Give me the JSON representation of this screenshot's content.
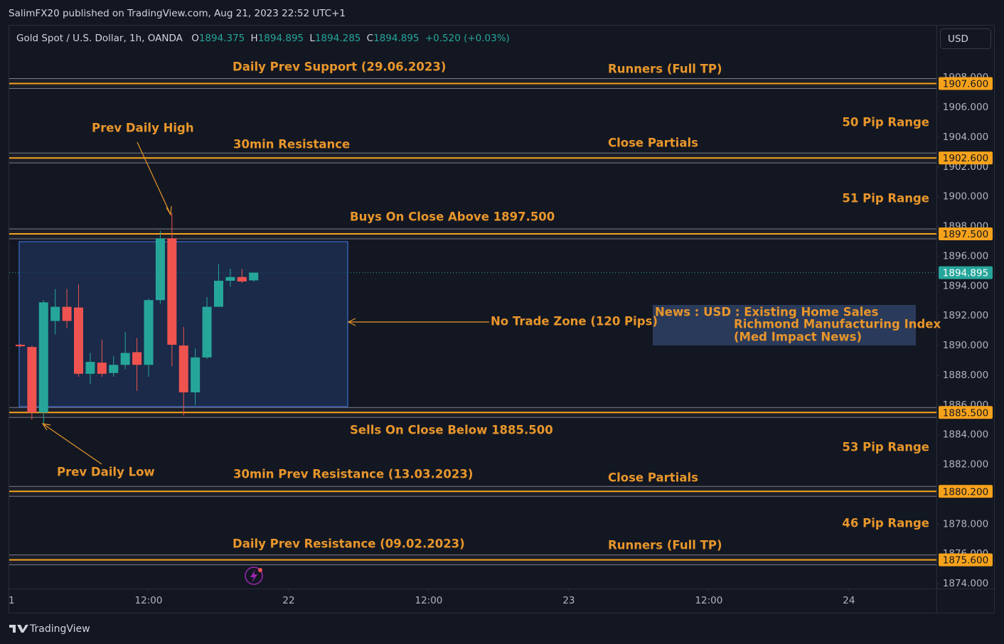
{
  "header": {
    "published": "SalimFX20 published on TradingView.com, Aug 21, 2023 22:52 UTC+1",
    "symbol": "Gold Spot / U.S. Dollar, 1h, OANDA",
    "ohlc": [
      {
        "key": "O",
        "value": "1894.375"
      },
      {
        "key": "H",
        "value": "1894.895"
      },
      {
        "key": "L",
        "value": "1894.285"
      },
      {
        "key": "C",
        "value": "1894.895"
      }
    ],
    "change": "+0.520 (+0.03%)",
    "currency": "USD"
  },
  "footer": {
    "brand": "TradingView"
  },
  "chart_data": {
    "type": "candlestick",
    "up_color": "#26a69a",
    "down_color": "#ef5350",
    "level_color": "#f7a21b",
    "x": [
      1,
      2,
      3,
      4,
      5,
      6,
      7,
      8,
      9,
      10,
      11,
      12,
      13,
      14,
      15,
      16,
      17,
      18,
      19,
      20,
      21
    ],
    "open": [
      1890.05,
      1889.9,
      1885.5,
      1891.65,
      1892.6,
      1892.55,
      1888.1,
      1888.85,
      1888.15,
      1888.7,
      1889.55,
      1888.7,
      1893.05,
      1897.2,
      1890.0,
      1886.85,
      1889.2,
      1892.6,
      1894.35,
      1894.6,
      1894.375
    ],
    "high": [
      1890.1,
      1890.0,
      1893.05,
      1893.8,
      1893.8,
      1894.1,
      1889.5,
      1890.4,
      1889.3,
      1890.9,
      1890.5,
      1893.15,
      1897.7,
      1898.9,
      1891.25,
      1889.8,
      1893.25,
      1895.45,
      1895.15,
      1895.15,
      1894.895
    ],
    "low": [
      1889.9,
      1885.0,
      1884.75,
      1890.75,
      1891.15,
      1887.9,
      1887.4,
      1887.9,
      1887.9,
      1888.4,
      1886.95,
      1887.9,
      1892.8,
      1888.6,
      1885.3,
      1886.0,
      1889.1,
      1892.6,
      1893.95,
      1894.2,
      1894.285
    ],
    "close": [
      1889.95,
      1885.5,
      1892.9,
      1892.6,
      1891.65,
      1888.1,
      1888.9,
      1888.1,
      1888.7,
      1889.5,
      1888.7,
      1893.05,
      1897.2,
      1890.05,
      1886.85,
      1889.2,
      1892.6,
      1894.35,
      1894.6,
      1894.3,
      1894.895
    ],
    "xlim": [
      0.06,
      79.5
    ],
    "xticks": [
      {
        "value": 0,
        "label": "1"
      },
      {
        "value": 12,
        "label": "12:00"
      },
      {
        "value": 24,
        "label": "22"
      },
      {
        "value": 36,
        "label": "12:00"
      },
      {
        "value": 48,
        "label": "23"
      },
      {
        "value": 60,
        "label": "12:00"
      },
      {
        "value": 72,
        "label": "24"
      }
    ],
    "ylim": [
      1873.67,
      1909.87
    ],
    "yticks": [
      {
        "value": 1874,
        "label": "1874.000"
      },
      {
        "value": 1876,
        "label": "1876.000"
      },
      {
        "value": 1878,
        "label": "1878.000"
      },
      {
        "value": 1880,
        "label": "1880.000"
      },
      {
        "value": 1882,
        "label": "1882.000"
      },
      {
        "value": 1884,
        "label": "1884.000"
      },
      {
        "value": 1886,
        "label": "1886.000"
      },
      {
        "value": 1888,
        "label": "1888.000"
      },
      {
        "value": 1890,
        "label": "1890.000"
      },
      {
        "value": 1892,
        "label": "1892.000"
      },
      {
        "value": 1894,
        "label": "1894.000"
      },
      {
        "value": 1896,
        "label": "1896.000"
      },
      {
        "value": 1898,
        "label": "1898.000"
      },
      {
        "value": 1900,
        "label": "1900.000"
      },
      {
        "value": 1902,
        "label": "1902.000"
      },
      {
        "value": 1904,
        "label": "1904.000"
      },
      {
        "value": 1906,
        "label": "1906.000"
      },
      {
        "value": 1908,
        "label": "1908.000"
      }
    ],
    "levels": [
      {
        "value": 1907.6,
        "label": "1907.600"
      },
      {
        "value": 1902.6,
        "label": "1902.600"
      },
      {
        "value": 1897.5,
        "label": "1897.500"
      },
      {
        "value": 1885.5,
        "label": "1885.500"
      },
      {
        "value": 1880.2,
        "label": "1880.200"
      },
      {
        "value": 1875.6,
        "label": "1875.600"
      }
    ],
    "last_price": {
      "value": 1894.895,
      "label": "1894.895"
    },
    "annotations": [
      "Daily Prev Support (29.06.2023)",
      "Runners (Full TP)",
      "50 Pip Range",
      "Prev Daily High",
      "30min Resistance",
      "Close Partials",
      "51 Pip Range",
      "Buys On Close Above 1897.500",
      "No Trade Zone (120 Pips)",
      "News : USD : Existing Home Sales",
      "Richmond Manufacturing Index",
      "(Med Impact News)",
      "Sells On Close Below 1885.500",
      "53 Pip Range",
      "Prev Daily Low",
      "30min Prev Resistance (13.03.2023)",
      "Close Partials",
      "46 Pip Range",
      "Daily Prev Resistance (09.02.2023)",
      "Runners (Full TP)"
    ]
  }
}
